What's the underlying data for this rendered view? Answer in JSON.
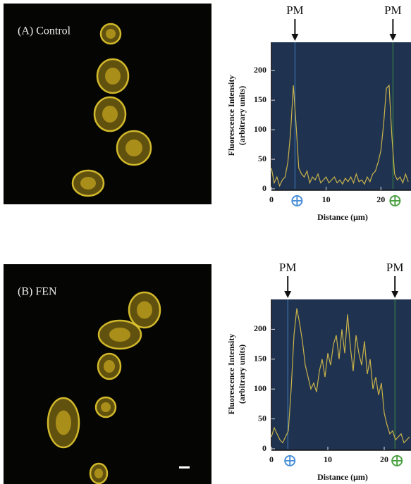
{
  "chart_data": [
    {
      "type": "line",
      "label": "(A) Control",
      "y_label": [
        "Fluorescence Intensity",
        "(arbitrary units)"
      ],
      "x_label": "Distance (μm)",
      "x": [
        0,
        0.5,
        1,
        1.5,
        2,
        2.5,
        3,
        3.5,
        4,
        4.5,
        5,
        5.5,
        6,
        6.5,
        7,
        7.5,
        8,
        8.5,
        9,
        9.5,
        10,
        10.5,
        11,
        11.5,
        12,
        12.5,
        13,
        13.5,
        14,
        14.5,
        15,
        15.5,
        16,
        16.5,
        17,
        17.5,
        18,
        18.5,
        19,
        19.5,
        20,
        20.5,
        21,
        21.5,
        22,
        22.5,
        23,
        23.5,
        24,
        24.5,
        25
      ],
      "series": [
        {
          "color": "#c9b24a",
          "values": [
            35,
            10,
            20,
            5,
            15,
            20,
            45,
            95,
            175,
            110,
            35,
            25,
            20,
            30,
            10,
            20,
            15,
            25,
            10,
            15,
            20,
            10,
            15,
            20,
            10,
            15,
            8,
            18,
            12,
            20,
            10,
            25,
            12,
            15,
            8,
            20,
            12,
            25,
            30,
            45,
            65,
            110,
            170,
            175,
            90,
            25,
            15,
            20,
            10,
            25,
            12
          ]
        }
      ],
      "xlim": [
        0,
        25.5
      ],
      "ylim": [
        0,
        248
      ],
      "xticks": [
        0,
        10,
        20
      ],
      "yticks": [
        0,
        50,
        100,
        150,
        200
      ],
      "annotations": [
        {
          "text": "PM",
          "x": 4.3
        },
        {
          "text": "PM",
          "x": 22.2
        }
      ]
    },
    {
      "type": "line",
      "label": "(B) FEN",
      "y_label": [
        "Fluorescence Intensity",
        "(arbitrary units)"
      ],
      "x_label": "Distance (μm)",
      "x": [
        0,
        0.5,
        1,
        1.5,
        2,
        2.5,
        3,
        3.5,
        4,
        4.5,
        5,
        5.5,
        6,
        6.5,
        7,
        7.5,
        8,
        8.5,
        9,
        9.5,
        10,
        10.5,
        11,
        11.5,
        12,
        12.5,
        13,
        13.5,
        14,
        14.5,
        15,
        15.5,
        16,
        16.5,
        17,
        17.5,
        18,
        18.5,
        19,
        19.5,
        20,
        20.5,
        21,
        21.5,
        22,
        22.5,
        23,
        23.5,
        24,
        24.5
      ],
      "series": [
        {
          "color": "#c9b24a",
          "values": [
            20,
            35,
            25,
            15,
            10,
            20,
            30,
            100,
            190,
            235,
            210,
            180,
            140,
            120,
            100,
            110,
            95,
            130,
            150,
            120,
            160,
            140,
            175,
            190,
            150,
            200,
            160,
            225,
            170,
            130,
            190,
            160,
            140,
            180,
            125,
            150,
            100,
            120,
            90,
            110,
            60,
            40,
            25,
            30,
            15,
            20,
            25,
            10,
            15,
            20
          ]
        }
      ],
      "xlim": [
        0,
        24.75
      ],
      "ylim": [
        0,
        250
      ],
      "xticks": [
        0,
        10,
        20
      ],
      "yticks": [
        0,
        50,
        100,
        150,
        200
      ],
      "annotations": [
        {
          "text": "PM",
          "x": 2.9
        },
        {
          "text": "PM",
          "x": 21.9
        }
      ]
    }
  ]
}
